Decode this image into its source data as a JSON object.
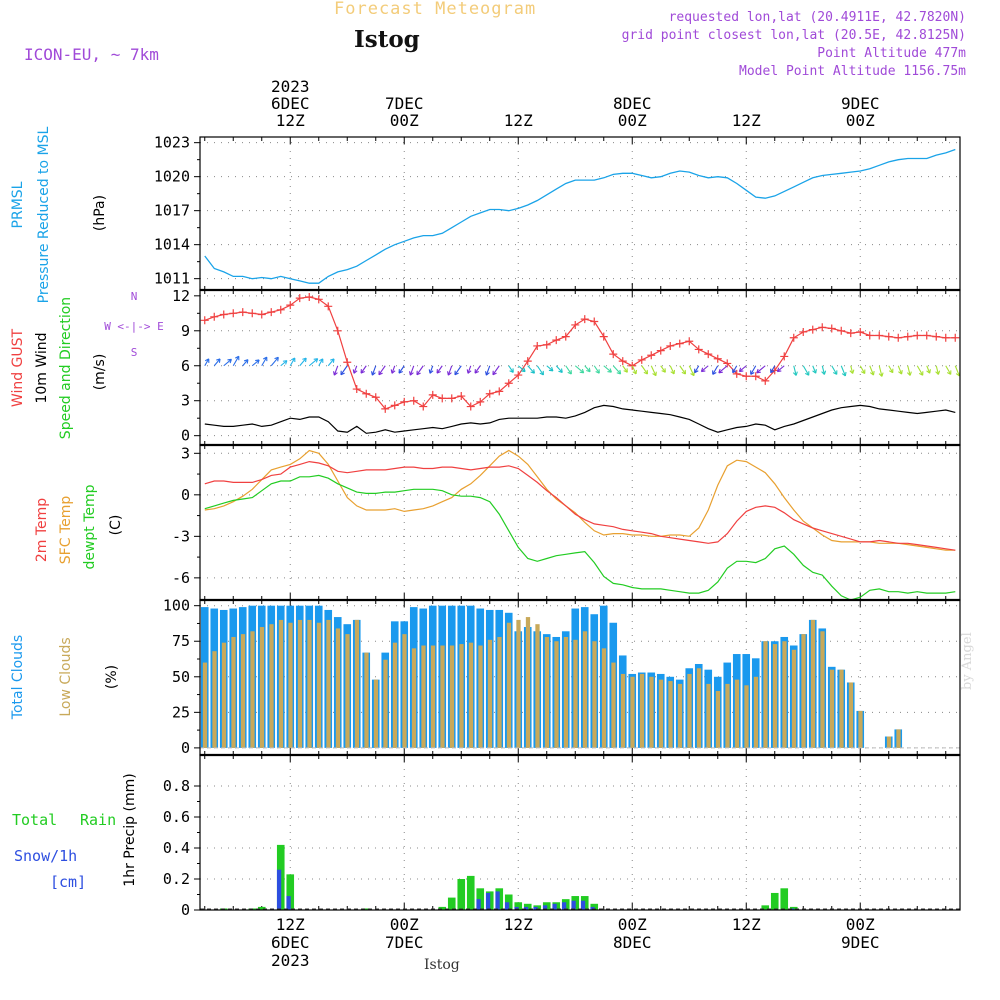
{
  "header": {
    "product": "Forecast Meteogram",
    "station": "Istog",
    "model": "ICON-EU, ~ 7km",
    "requested": "requested lon,lat (20.4911E, 42.7820N)",
    "grid_point": "grid point closest lon,lat (20.5E, 42.8125N)",
    "point_altitude": "Point Altitude 477m",
    "model_altitude": "Model Point Altitude 1156.75m",
    "footer": "Istog",
    "credit": "by Angel"
  },
  "colors": {
    "pressure": "#1aa3e8",
    "gust": "#f04040",
    "wind": "#000000",
    "barb": "#7a2bd6",
    "t2m": "#f04040",
    "tsfc": "#e8a030",
    "dewpt": "#22cc22",
    "total_clouds": "#1a99ee",
    "low_clouds": "#c8a95a",
    "rain": "#22cc22",
    "snow": "#2d4ee0",
    "label_purple": "#a04ad8"
  },
  "chart_data": [
    {
      "type": "line",
      "title": "PRMSL Pressure Reduced to MSL",
      "title_parts": [
        "PRMSL",
        "Pressure Reduced to MSL"
      ],
      "ylabel": "(hPa)",
      "ylim": [
        1010,
        1023.5
      ],
      "yticks": [
        1011,
        1014,
        1017,
        1020,
        1023
      ],
      "x_hours_from": "2023-12-06T03Z",
      "series": [
        {
          "name": "PRMSL",
          "x": [
            0,
            1,
            2,
            3,
            4,
            5,
            6,
            7,
            8,
            9,
            10,
            11,
            12,
            13,
            14,
            15,
            16,
            17,
            18,
            19,
            20,
            21,
            22,
            23,
            24,
            25,
            26,
            27,
            28,
            29,
            30,
            31,
            32,
            33,
            34,
            35,
            36,
            37,
            38,
            39,
            40,
            41,
            42,
            43,
            44,
            45,
            46,
            47,
            48,
            49,
            50,
            51,
            52,
            53,
            54,
            55,
            56,
            57,
            58,
            59,
            60,
            61,
            62,
            63,
            64,
            65,
            66,
            67,
            68,
            69,
            70,
            71,
            72,
            73,
            74,
            75,
            76,
            77,
            78,
            79
          ],
          "values": [
            1013.0,
            1011.9,
            1011.6,
            1011.2,
            1011.2,
            1011.0,
            1011.1,
            1011.0,
            1011.2,
            1011.0,
            1010.8,
            1010.6,
            1010.6,
            1011.2,
            1011.6,
            1011.8,
            1012.1,
            1012.6,
            1013.1,
            1013.6,
            1014.0,
            1014.3,
            1014.6,
            1014.8,
            1014.8,
            1015.0,
            1015.5,
            1016.0,
            1016.5,
            1016.8,
            1017.1,
            1017.1,
            1017.0,
            1017.2,
            1017.5,
            1017.9,
            1018.4,
            1018.9,
            1019.4,
            1019.7,
            1019.7,
            1019.7,
            1019.9,
            1020.2,
            1020.3,
            1020.3,
            1020.1,
            1019.9,
            1020.0,
            1020.3,
            1020.5,
            1020.4,
            1020.1,
            1019.9,
            1020.0,
            1019.9,
            1019.4,
            1018.8,
            1018.2,
            1018.1,
            1018.3,
            1018.7,
            1019.1,
            1019.5,
            1019.9,
            1020.1,
            1020.2,
            1020.3,
            1020.4,
            1020.5,
            1020.7,
            1021.0,
            1021.3,
            1021.5,
            1021.6,
            1021.6,
            1021.6,
            1021.9,
            1022.1,
            1022.4
          ]
        }
      ]
    },
    {
      "type": "line",
      "title": "Wind GUST / 10m Wind Speed and Direction",
      "title_parts": [
        "Wind GUST",
        "10m Wind",
        "Speed and Direction"
      ],
      "ylabel": "(m/s)",
      "compass": [
        "N",
        "W <-|-> E",
        "S"
      ],
      "ylim": [
        -0.8,
        12.5
      ],
      "yticks": [
        0,
        3,
        6,
        9,
        12
      ],
      "series": [
        {
          "name": "Wind GUST",
          "values": [
            9.9,
            10.2,
            10.4,
            10.5,
            10.6,
            10.5,
            10.4,
            10.6,
            10.8,
            11.2,
            11.8,
            11.9,
            11.7,
            11.1,
            9.0,
            6.3,
            4.0,
            3.6,
            3.3,
            2.3,
            2.6,
            2.9,
            3.0,
            2.5,
            3.5,
            3.2,
            3.2,
            3.4,
            2.5,
            2.9,
            3.6,
            3.8,
            4.5,
            5.2,
            6.4,
            7.7,
            7.8,
            8.2,
            8.5,
            9.5,
            10.0,
            9.8,
            8.5,
            7.0,
            6.4,
            6.0,
            6.5,
            6.9,
            7.3,
            7.7,
            7.9,
            8.1,
            7.4,
            7.0,
            6.6,
            6.2,
            5.3,
            5.1,
            5.1,
            4.7,
            5.6,
            6.8,
            8.4,
            8.9,
            9.1,
            9.3,
            9.2,
            9.0,
            8.8,
            8.9,
            8.6,
            8.6,
            8.5,
            8.4,
            8.5,
            8.6,
            8.6,
            8.5,
            8.4,
            8.4
          ]
        },
        {
          "name": "10m Wind",
          "values": [
            1.0,
            0.9,
            0.8,
            0.8,
            0.9,
            1.0,
            0.8,
            0.9,
            1.2,
            1.5,
            1.4,
            1.6,
            1.6,
            1.2,
            0.4,
            0.3,
            0.8,
            0.2,
            0.3,
            0.5,
            0.3,
            0.4,
            0.5,
            0.6,
            0.7,
            0.6,
            0.8,
            1.0,
            1.1,
            1.0,
            1.1,
            1.4,
            1.5,
            1.5,
            1.5,
            1.5,
            1.6,
            1.6,
            1.5,
            1.7,
            2.0,
            2.4,
            2.6,
            2.5,
            2.3,
            2.2,
            2.1,
            2.0,
            1.9,
            1.8,
            1.6,
            1.4,
            1.0,
            0.6,
            0.3,
            0.5,
            0.7,
            0.8,
            1.0,
            0.9,
            0.5,
            0.8,
            1.0,
            1.3,
            1.6,
            1.9,
            2.2,
            2.4,
            2.5,
            2.6,
            2.5,
            2.3,
            2.2,
            2.1,
            2.0,
            1.9,
            2.0,
            2.1,
            2.2,
            2.0
          ]
        }
      ]
    },
    {
      "type": "line",
      "title": "2m Temp / SFC Temp / dewpt Temp",
      "title_parts": [
        "2m Temp",
        "SFC Temp",
        "dewpt Temp"
      ],
      "ylabel": "(C)",
      "ylim": [
        -7.6,
        3.6
      ],
      "yticks": [
        -6,
        -3,
        0,
        3
      ],
      "series": [
        {
          "name": "2m Temp",
          "values": [
            0.8,
            1.0,
            1.0,
            0.9,
            0.9,
            0.9,
            1.1,
            1.4,
            1.5,
            2.0,
            2.2,
            2.4,
            2.3,
            2.1,
            1.7,
            1.6,
            1.7,
            1.8,
            1.8,
            1.8,
            1.9,
            2.0,
            2.0,
            1.9,
            1.9,
            2.0,
            2.0,
            1.9,
            1.8,
            1.9,
            2.0,
            2.0,
            2.1,
            1.9,
            1.4,
            0.9,
            0.3,
            -0.2,
            -0.8,
            -1.4,
            -1.8,
            -2.1,
            -2.2,
            -2.3,
            -2.5,
            -2.6,
            -2.7,
            -2.8,
            -3.0,
            -3.1,
            -3.2,
            -3.3,
            -3.4,
            -3.5,
            -3.4,
            -2.8,
            -1.9,
            -1.2,
            -0.9,
            -0.8,
            -0.9,
            -1.3,
            -1.8,
            -2.1,
            -2.4,
            -2.6,
            -2.8,
            -3.0,
            -3.2,
            -3.4,
            -3.4,
            -3.3,
            -3.4,
            -3.5,
            -3.5,
            -3.6,
            -3.7,
            -3.8,
            -3.9,
            -4.0
          ]
        },
        {
          "name": "SFC Temp",
          "values": [
            -1.1,
            -1.0,
            -0.8,
            -0.5,
            -0.1,
            0.4,
            1.1,
            1.8,
            2.0,
            2.2,
            2.6,
            3.2,
            3.0,
            2.2,
            1.0,
            -0.2,
            -0.8,
            -1.1,
            -1.1,
            -1.1,
            -1.0,
            -1.2,
            -1.1,
            -1.0,
            -0.8,
            -0.5,
            -0.2,
            0.4,
            0.8,
            1.4,
            2.1,
            2.8,
            3.2,
            2.8,
            2.2,
            1.3,
            0.4,
            -0.3,
            -0.8,
            -1.3,
            -2.0,
            -2.6,
            -2.9,
            -2.8,
            -2.8,
            -2.9,
            -2.9,
            -3.0,
            -3.0,
            -2.9,
            -2.9,
            -3.0,
            -2.4,
            -1.1,
            0.7,
            2.1,
            2.5,
            2.4,
            2.0,
            1.6,
            0.8,
            -0.2,
            -1.1,
            -1.9,
            -2.4,
            -2.9,
            -3.3,
            -3.4,
            -3.4,
            -3.4,
            -3.4,
            -3.5,
            -3.5,
            -3.5,
            -3.6,
            -3.7,
            -3.8,
            -3.9,
            -4.0,
            -4.0
          ]
        },
        {
          "name": "dewpt Temp",
          "values": [
            -1.0,
            -0.8,
            -0.6,
            -0.4,
            -0.3,
            -0.2,
            0.3,
            0.8,
            1.0,
            1.0,
            1.3,
            1.3,
            1.4,
            1.2,
            0.8,
            0.5,
            0.2,
            0.1,
            0.1,
            0.2,
            0.2,
            0.3,
            0.4,
            0.4,
            0.4,
            0.3,
            0.0,
            -0.1,
            -0.1,
            -0.2,
            -0.5,
            -1.4,
            -2.6,
            -3.8,
            -4.6,
            -4.8,
            -4.6,
            -4.4,
            -4.3,
            -4.2,
            -4.1,
            -4.9,
            -5.9,
            -6.4,
            -6.5,
            -6.7,
            -6.8,
            -6.8,
            -6.8,
            -6.9,
            -7.0,
            -7.1,
            -7.1,
            -6.9,
            -6.3,
            -5.3,
            -4.8,
            -4.8,
            -4.9,
            -4.6,
            -3.9,
            -3.7,
            -4.3,
            -5.1,
            -5.6,
            -5.8,
            -6.6,
            -7.3,
            -7.6,
            -7.4,
            -6.9,
            -6.8,
            -7.0,
            -7.0,
            -7.1,
            -7.0,
            -7.1,
            -7.1,
            -7.1,
            -7.0
          ]
        }
      ]
    },
    {
      "type": "bar",
      "title": "Total Clouds / Low Clouds",
      "title_parts": [
        "Total Clouds",
        "Low Clouds"
      ],
      "ylabel": "(%)",
      "ylim": [
        -5,
        104
      ],
      "yticks": [
        0,
        25,
        50,
        75,
        100
      ],
      "series": [
        {
          "name": "Total Clouds",
          "values": [
            99,
            98,
            97,
            98,
            99,
            100,
            100,
            100,
            100,
            100,
            100,
            100,
            100,
            97,
            92,
            87,
            90,
            67,
            48,
            67,
            89,
            89,
            99,
            98,
            100,
            100,
            100,
            100,
            100,
            98,
            97,
            97,
            95,
            82,
            85,
            82,
            80,
            78,
            82,
            98,
            99,
            94,
            100,
            88,
            65,
            52,
            53,
            53,
            52,
            50,
            48,
            56,
            59,
            55,
            50,
            60,
            66,
            66,
            63,
            75,
            75,
            78,
            72,
            80,
            90,
            84,
            57,
            55,
            46,
            26,
            0,
            0,
            8,
            13,
            0,
            0,
            0,
            0,
            0,
            0
          ]
        },
        {
          "name": "Low Clouds",
          "values": [
            60,
            68,
            74,
            78,
            80,
            82,
            85,
            87,
            90,
            88,
            90,
            90,
            88,
            90,
            84,
            80,
            90,
            67,
            48,
            62,
            74,
            80,
            70,
            72,
            72,
            72,
            72,
            73,
            74,
            72,
            76,
            78,
            88,
            90,
            92,
            87,
            78,
            75,
            78,
            76,
            82,
            75,
            70,
            60,
            52,
            50,
            52,
            50,
            48,
            47,
            45,
            52,
            56,
            45,
            40,
            45,
            48,
            44,
            50,
            75,
            73,
            75,
            69,
            80,
            90,
            82,
            55,
            55,
            46,
            26,
            0,
            0,
            8,
            13,
            0,
            0,
            0,
            0,
            0,
            0
          ]
        }
      ]
    },
    {
      "type": "bar",
      "title": "1hr Precip (mm)",
      "legend": [
        "Total",
        "Rain",
        "Snow/1h",
        "[cm]"
      ],
      "ylabel": "1hr Precip (mm)",
      "ylim": [
        0,
        1.0
      ],
      "yticks": [
        0,
        0.2,
        0.4,
        0.6,
        0.8
      ],
      "series": [
        {
          "name": "Total Rain",
          "values": [
            0,
            0,
            0.01,
            0,
            0,
            0.01,
            0.02,
            0,
            0.42,
            0.23,
            0,
            0,
            0,
            0,
            0,
            0,
            0,
            0.01,
            0,
            0,
            0,
            0,
            0,
            0,
            0,
            0.02,
            0.08,
            0.2,
            0.22,
            0.14,
            0.12,
            0.14,
            0.1,
            0.05,
            0.04,
            0.03,
            0.05,
            0.05,
            0.07,
            0.09,
            0.09,
            0.04,
            0,
            0,
            0,
            0,
            0,
            0,
            0,
            0,
            0,
            0,
            0,
            0,
            0,
            0,
            0,
            0,
            0,
            0.03,
            0.11,
            0.14,
            0.02,
            0,
            0,
            0,
            0,
            0,
            0,
            0,
            0,
            0,
            0,
            0,
            0,
            0,
            0,
            0,
            0,
            0
          ]
        },
        {
          "name": "Snow/1h [cm]",
          "values": [
            0,
            0,
            0,
            0,
            0,
            0,
            0,
            0,
            0.26,
            0.09,
            0,
            0,
            0,
            0,
            0,
            0,
            0,
            0,
            0,
            0,
            0,
            0,
            0,
            0,
            0,
            0,
            0,
            0,
            0,
            0.07,
            0.11,
            0.12,
            0.05,
            0.02,
            0.02,
            0.02,
            0.03,
            0.04,
            0.05,
            0.06,
            0.06,
            0.02,
            0,
            0,
            0,
            0,
            0,
            0,
            0,
            0,
            0,
            0,
            0,
            0,
            0,
            0,
            0,
            0,
            0,
            0,
            0,
            0,
            0.01,
            0,
            0,
            0,
            0,
            0,
            0,
            0,
            0,
            0,
            0,
            0,
            0,
            0,
            0,
            0,
            0,
            0
          ]
        }
      ]
    }
  ],
  "time_axis": {
    "start_hour_offset": 0,
    "hours": 80,
    "ticks": [
      {
        "hour": 9,
        "label": "12Z",
        "day": "6DEC",
        "year": "2023"
      },
      {
        "hour": 21,
        "label": "00Z",
        "day": "7DEC",
        "year": ""
      },
      {
        "hour": 33,
        "label": "12Z",
        "day": "",
        "year": ""
      },
      {
        "hour": 45,
        "label": "00Z",
        "day": "8DEC",
        "year": ""
      },
      {
        "hour": 57,
        "label": "12Z",
        "day": "",
        "year": ""
      },
      {
        "hour": 69,
        "label": "00Z",
        "day": "9DEC",
        "year": ""
      }
    ]
  }
}
